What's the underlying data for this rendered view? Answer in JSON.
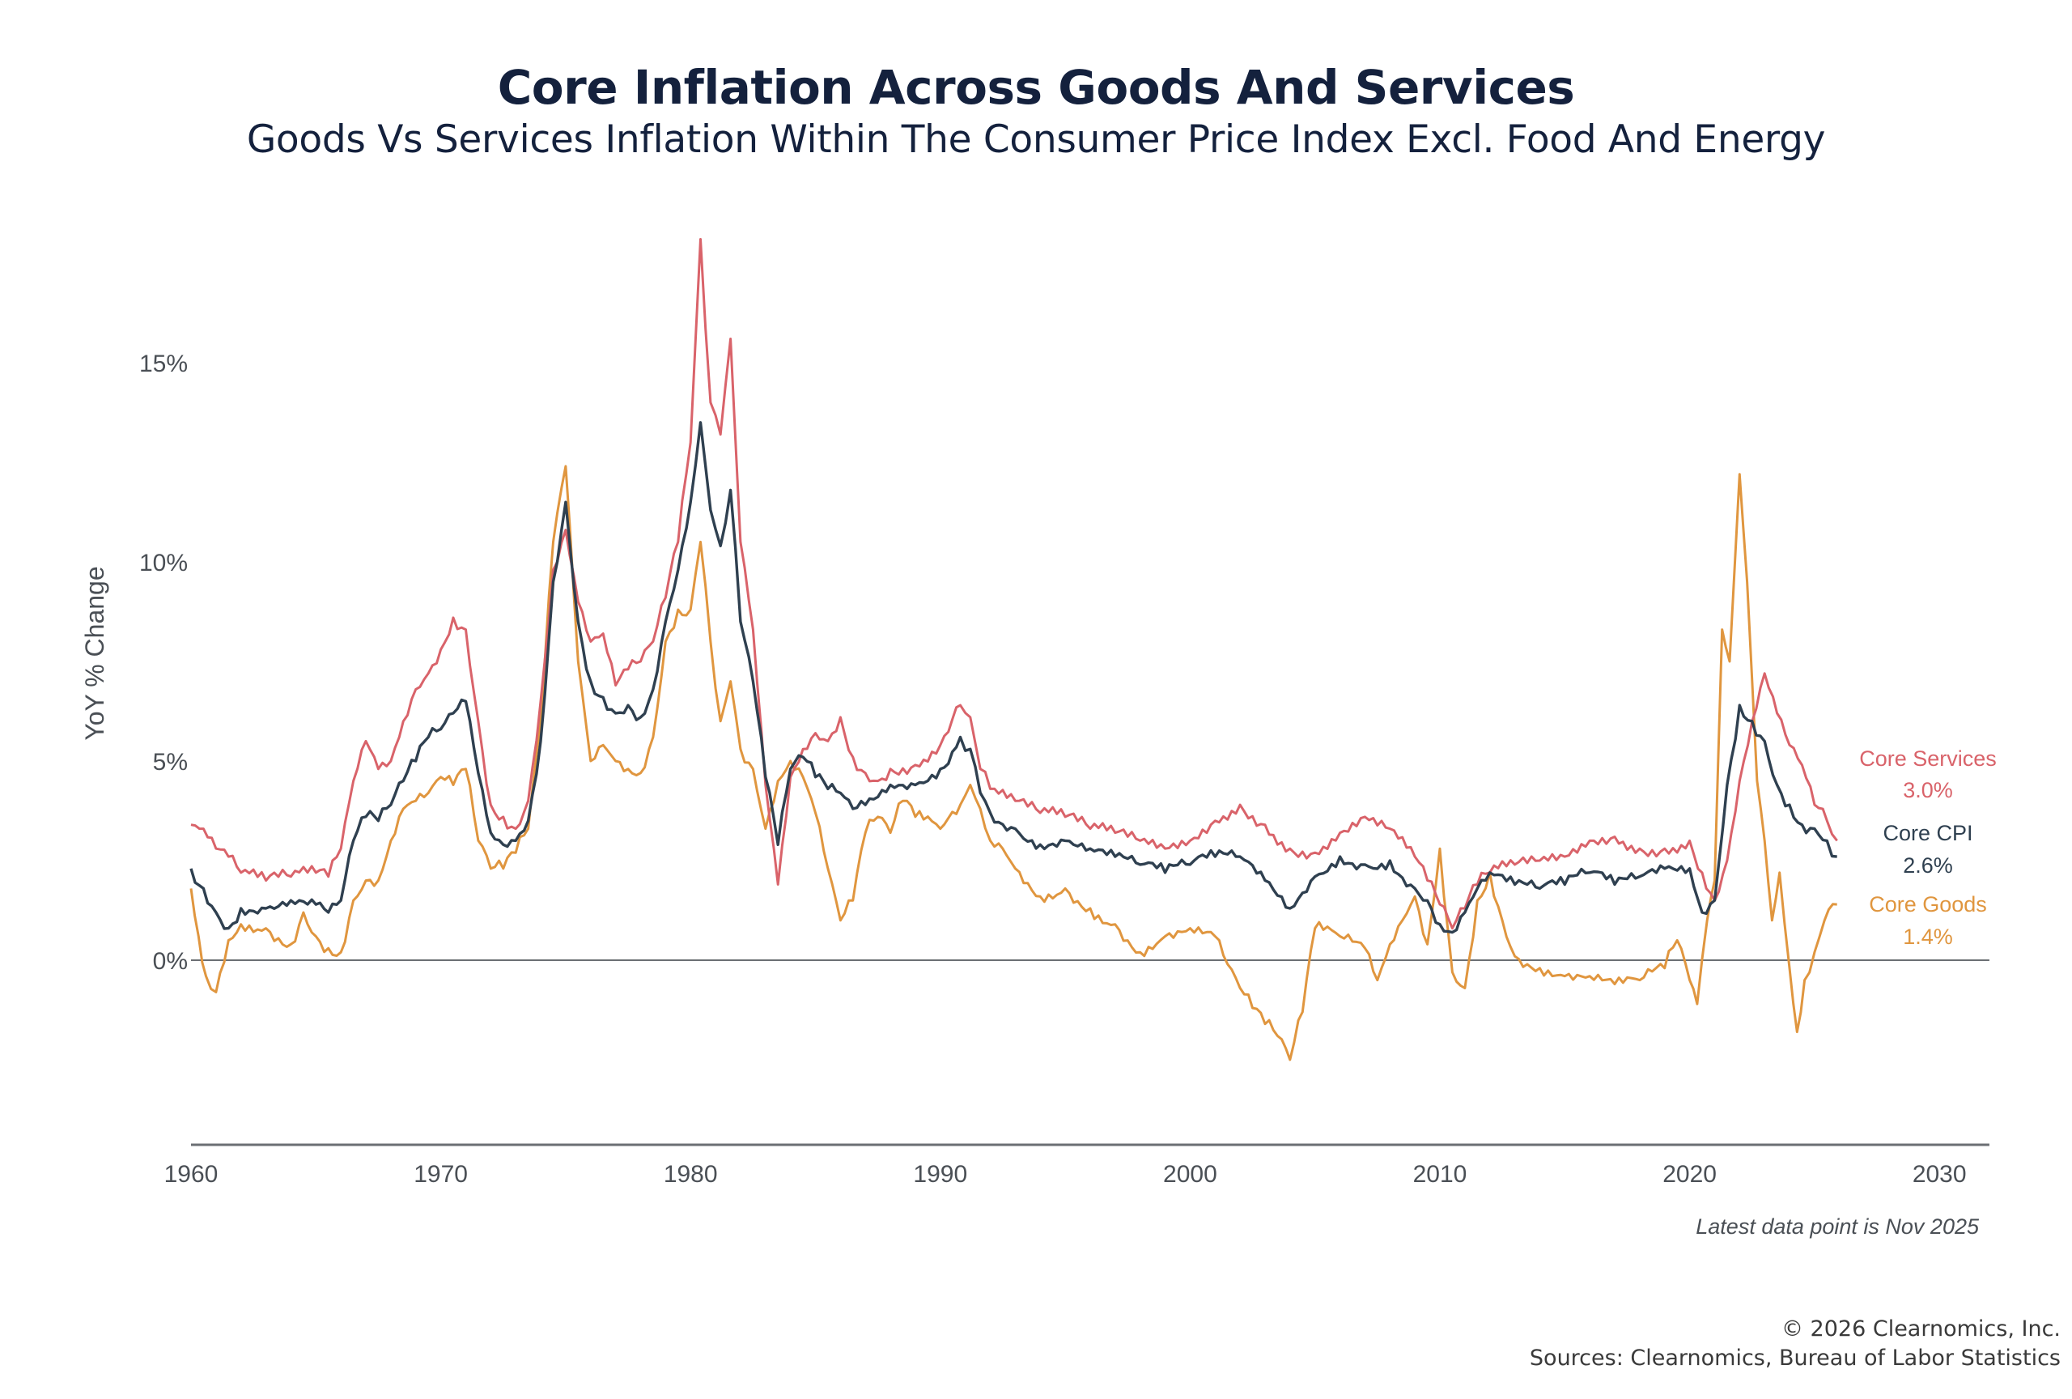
{
  "header": {
    "title": "Core Inflation Across Goods And Services",
    "subtitle": "Goods Vs Services Inflation Within The Consumer Price Index Excl. Food And Energy"
  },
  "footer": {
    "note": "Latest data point is Nov 2025",
    "copyright": "© 2026 Clearnomics, Inc.",
    "sources": "Sources: Clearnomics, Bureau of Labor Statistics"
  },
  "colors": {
    "title": "#14213d",
    "core_services": "#d9636a",
    "core_cpi": "#2f4050",
    "core_goods": "#e0963f",
    "axis": "#6b6f73",
    "tick_text": "#4a4f55"
  },
  "chart_data": {
    "type": "line",
    "title": "Core Inflation Across Goods And Services",
    "subtitle": "Goods Vs Services Inflation Within The Consumer Price Index Excl. Food And Energy",
    "xlabel": "",
    "ylabel": "YoY % Change",
    "xlim": [
      1960,
      2032
    ],
    "ylim": [
      -3.7,
      18.2
    ],
    "xticks": [
      1960,
      1970,
      1980,
      1990,
      2000,
      2010,
      2020,
      2030
    ],
    "xtick_labels": [
      "1960",
      "1970",
      "1980",
      "1990",
      "2000",
      "2010",
      "2020",
      "2030"
    ],
    "yticks": [
      0,
      5,
      10,
      15
    ],
    "ytick_labels": [
      "0%",
      "5%",
      "10%",
      "15%"
    ],
    "grid": false,
    "zero_line": true,
    "legend": "right-end labels",
    "series": [
      {
        "name": "Core Services",
        "latest_label": "3.0%",
        "color": "#d9636a",
        "x": [
          1960,
          1960.5,
          1961,
          1961.5,
          1962,
          1963,
          1964,
          1965,
          1965.5,
          1966,
          1966.5,
          1967,
          1967.5,
          1968,
          1968.5,
          1969,
          1969.5,
          1970,
          1970.5,
          1971,
          1971.5,
          1972,
          1972.5,
          1973,
          1973.5,
          1974,
          1974.5,
          1975,
          1975.5,
          1976,
          1976.5,
          1977,
          1977.5,
          1978,
          1978.5,
          1979,
          1979.5,
          1980,
          1980.4,
          1980.8,
          1981.2,
          1981.6,
          1982,
          1982.5,
          1983,
          1983.5,
          1984,
          1984.5,
          1985,
          1985.5,
          1986,
          1986.5,
          1987,
          1987.5,
          1988,
          1989,
          1990,
          1990.8,
          1991.2,
          1991.6,
          1992,
          1993,
          1994,
          1995,
          1996,
          1997,
          1998,
          1999,
          2000,
          2001,
          2002,
          2003,
          2004,
          2005,
          2006,
          2007,
          2008,
          2009,
          2009.5,
          2010,
          2010.5,
          2011,
          2011.5,
          2012,
          2013,
          2014,
          2015,
          2016,
          2017,
          2018,
          2019,
          2020,
          2020.5,
          2021,
          2021.5,
          2022,
          2022.5,
          2023,
          2023.5,
          2024,
          2024.5,
          2025,
          2025.5,
          2025.9
        ],
        "values": [
          3.4,
          3.3,
          2.8,
          2.6,
          2.2,
          2.0,
          2.1,
          2.2,
          2.1,
          2.8,
          4.5,
          5.5,
          4.8,
          5.0,
          6.0,
          6.8,
          7.2,
          7.8,
          8.6,
          8.3,
          6.0,
          3.9,
          3.6,
          3.3,
          4.0,
          6.5,
          9.8,
          10.8,
          9.0,
          8.0,
          8.2,
          6.9,
          7.3,
          7.5,
          8.0,
          9.1,
          10.5,
          13.0,
          18.1,
          14.0,
          13.2,
          15.6,
          10.5,
          8.3,
          4.4,
          1.9,
          4.6,
          5.3,
          5.7,
          5.5,
          6.1,
          5.1,
          4.7,
          4.5,
          4.8,
          4.9,
          5.4,
          6.4,
          6.1,
          4.8,
          4.3,
          4.0,
          3.7,
          3.6,
          3.3,
          3.2,
          3.0,
          2.8,
          3.0,
          3.5,
          3.9,
          3.4,
          2.8,
          2.7,
          3.2,
          3.6,
          3.3,
          2.6,
          2.0,
          1.4,
          0.8,
          1.3,
          1.9,
          2.2,
          2.4,
          2.5,
          2.6,
          3.0,
          3.1,
          2.8,
          2.8,
          3.0,
          2.2,
          1.5,
          2.5,
          4.5,
          6.0,
          7.2,
          6.2,
          5.4,
          4.9,
          3.9,
          3.5,
          3.0
        ]
      },
      {
        "name": "Core CPI",
        "latest_label": "2.6%",
        "color": "#2f4050",
        "x": [
          1960,
          1960.5,
          1961,
          1961.5,
          1962,
          1963,
          1964,
          1965,
          1965.5,
          1966,
          1966.5,
          1967,
          1967.5,
          1968,
          1968.5,
          1969,
          1969.5,
          1970,
          1970.5,
          1971,
          1971.5,
          1972,
          1972.5,
          1973,
          1973.5,
          1974,
          1974.5,
          1975,
          1975.5,
          1976,
          1976.5,
          1977,
          1977.5,
          1978,
          1978.5,
          1979,
          1979.5,
          1980,
          1980.4,
          1980.8,
          1981.2,
          1981.6,
          1982,
          1982.5,
          1983,
          1983.5,
          1984,
          1984.5,
          1985,
          1985.5,
          1986,
          1986.5,
          1987,
          1987.5,
          1988,
          1989,
          1990,
          1990.8,
          1991.2,
          1991.6,
          1992,
          1993,
          1994,
          1995,
          1996,
          1997,
          1998,
          1999,
          2000,
          2001,
          2002,
          2003,
          2004,
          2005,
          2006,
          2007,
          2008,
          2009,
          2009.5,
          2010,
          2010.5,
          2011,
          2011.5,
          2012,
          2013,
          2014,
          2015,
          2016,
          2017,
          2018,
          2019,
          2020,
          2020.5,
          2021,
          2021.5,
          2022,
          2022.5,
          2023,
          2023.5,
          2024,
          2024.5,
          2025,
          2025.5,
          2025.9
        ],
        "values": [
          2.3,
          1.8,
          1.2,
          0.8,
          1.3,
          1.3,
          1.5,
          1.4,
          1.2,
          1.5,
          3.0,
          3.6,
          3.5,
          3.9,
          4.5,
          5.0,
          5.6,
          5.8,
          6.2,
          6.5,
          4.7,
          3.2,
          2.9,
          3.0,
          3.5,
          5.5,
          9.5,
          11.5,
          8.5,
          7.0,
          6.6,
          6.2,
          6.4,
          6.1,
          6.8,
          8.5,
          9.8,
          11.5,
          13.5,
          11.3,
          10.4,
          11.8,
          8.5,
          7.0,
          4.6,
          2.9,
          4.8,
          5.1,
          4.6,
          4.3,
          4.2,
          3.8,
          3.9,
          4.1,
          4.4,
          4.4,
          4.8,
          5.6,
          5.3,
          4.2,
          3.7,
          3.3,
          2.9,
          3.0,
          2.8,
          2.6,
          2.4,
          2.2,
          2.4,
          2.6,
          2.6,
          2.0,
          1.3,
          2.1,
          2.6,
          2.4,
          2.5,
          1.8,
          1.5,
          0.9,
          0.7,
          1.2,
          1.8,
          2.2,
          1.9,
          1.8,
          1.9,
          2.2,
          1.9,
          2.1,
          2.3,
          2.3,
          1.2,
          1.5,
          4.4,
          6.4,
          6.0,
          5.5,
          4.4,
          3.9,
          3.4,
          3.3,
          3.0,
          2.6
        ]
      },
      {
        "name": "Core Goods",
        "latest_label": "1.4%",
        "color": "#e0963f",
        "x": [
          1960,
          1960.3,
          1960.6,
          1961,
          1961.5,
          1962,
          1963,
          1964,
          1964.5,
          1965,
          1965.5,
          1966,
          1966.5,
          1967,
          1967.5,
          1968,
          1968.5,
          1969,
          1969.5,
          1970,
          1970.5,
          1971,
          1971.5,
          1972,
          1972.5,
          1973,
          1973.5,
          1974,
          1974.5,
          1975,
          1975.5,
          1976,
          1976.5,
          1977,
          1977.5,
          1978,
          1978.5,
          1979,
          1979.5,
          1980,
          1980.4,
          1980.8,
          1981.2,
          1981.6,
          1982,
          1982.5,
          1983,
          1983.5,
          1984,
          1984.5,
          1985,
          1985.5,
          1986,
          1986.5,
          1987,
          1987.5,
          1988,
          1988.5,
          1989,
          1990,
          1990.8,
          1991.2,
          1991.6,
          1992,
          1992.5,
          1993,
          1994,
          1995,
          1996,
          1997,
          1998,
          1999,
          2000,
          2001,
          2001.5,
          2002,
          2002.5,
          2003,
          2003.5,
          2004,
          2004.5,
          2005,
          2006,
          2007,
          2007.5,
          2008,
          2008.5,
          2009,
          2009.5,
          2010,
          2010.5,
          2011,
          2011.5,
          2012,
          2012.5,
          2013,
          2014,
          2015,
          2016,
          2017,
          2018,
          2019,
          2019.5,
          2020,
          2020.3,
          2020.7,
          2021,
          2021.3,
          2021.6,
          2022,
          2022.3,
          2022.7,
          2023,
          2023.3,
          2023.6,
          2024,
          2024.3,
          2024.6,
          2025,
          2025.4,
          2025.9
        ],
        "values": [
          1.8,
          0.6,
          -0.4,
          -0.8,
          0.5,
          0.9,
          0.8,
          0.4,
          1.2,
          0.6,
          0.3,
          0.2,
          1.5,
          2.0,
          2.0,
          3.0,
          3.8,
          4.0,
          4.2,
          4.6,
          4.4,
          4.8,
          3.0,
          2.3,
          2.3,
          2.7,
          3.3,
          6.0,
          10.5,
          12.4,
          7.5,
          5.0,
          5.4,
          5.0,
          4.8,
          4.7,
          5.6,
          8.0,
          8.8,
          8.8,
          10.5,
          8.0,
          6.0,
          7.0,
          5.3,
          4.8,
          3.3,
          4.5,
          5.0,
          4.6,
          3.7,
          2.3,
          1.0,
          1.5,
          3.2,
          3.6,
          3.2,
          4.0,
          3.6,
          3.3,
          3.9,
          4.4,
          3.8,
          3.0,
          2.8,
          2.3,
          1.6,
          1.8,
          1.3,
          0.9,
          0.2,
          0.6,
          0.8,
          0.6,
          -0.1,
          -0.7,
          -1.2,
          -1.6,
          -1.9,
          -2.5,
          -1.3,
          0.8,
          0.6,
          0.3,
          -0.5,
          0.4,
          1.0,
          1.6,
          0.4,
          2.8,
          -0.3,
          -0.7,
          1.5,
          2.2,
          1.0,
          0.1,
          -0.2,
          -0.4,
          -0.4,
          -0.6,
          -0.5,
          -0.2,
          0.5,
          -0.5,
          -1.1,
          1.0,
          2.0,
          8.3,
          7.5,
          12.2,
          9.5,
          4.5,
          3.0,
          1.0,
          2.2,
          -0.2,
          -1.8,
          -0.5,
          0.2,
          1.0,
          1.4
        ]
      }
    ]
  }
}
